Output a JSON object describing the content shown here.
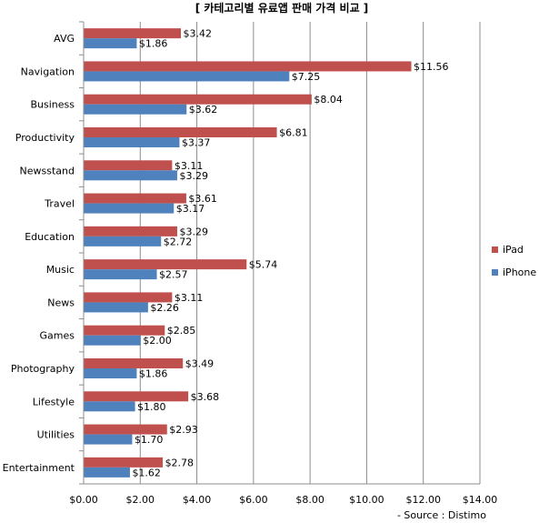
{
  "chart_data": {
    "type": "bar",
    "orientation": "horizontal",
    "title": "[ 카테고리별 유료앱 판매 가격 비교 ]",
    "source": "- Source : Distimo",
    "categories": [
      "AVG",
      "Navigation",
      "Business",
      "Productivity",
      "Newsstand",
      "Travel",
      "Education",
      "Music",
      "News",
      "Games",
      "Photography",
      "Lifestyle",
      "Utilities",
      "Entertainment"
    ],
    "series": [
      {
        "name": "iPad",
        "color": "#c0504d",
        "values": [
          3.42,
          11.56,
          8.04,
          6.81,
          3.11,
          3.61,
          3.29,
          5.74,
          3.11,
          2.85,
          3.49,
          3.68,
          2.93,
          2.78
        ],
        "labels": [
          "$3.42",
          "$11.56",
          "$8.04",
          "$6.81",
          "$3.11",
          "$3.61",
          "$3.29",
          "$5.74",
          "$3.11",
          "$2.85",
          "$3.49",
          "$3.68",
          "$2.93",
          "$2.78"
        ]
      },
      {
        "name": "iPhone",
        "color": "#4f81bd",
        "values": [
          1.86,
          7.25,
          3.62,
          3.37,
          3.29,
          3.17,
          2.72,
          2.57,
          2.26,
          2.0,
          1.86,
          1.8,
          1.7,
          1.62
        ],
        "labels": [
          "$1.86",
          "$7.25",
          "$3.62",
          "$3.37",
          "$3.29",
          "$3.17",
          "$2.72",
          "$2.57",
          "$2.26",
          "$2.00",
          "$1.86",
          "$1.80",
          "$1.70",
          "$1.62"
        ]
      }
    ],
    "xlim": [
      0,
      14
    ],
    "xticks": [
      0,
      2,
      4,
      6,
      8,
      10,
      12,
      14
    ],
    "xtick_labels": [
      "$0.00",
      "$2.00",
      "$4.00",
      "$6.00",
      "$8.00",
      "$10.00",
      "$12.00",
      "$14.00"
    ],
    "grid": true,
    "legend": "right"
  }
}
